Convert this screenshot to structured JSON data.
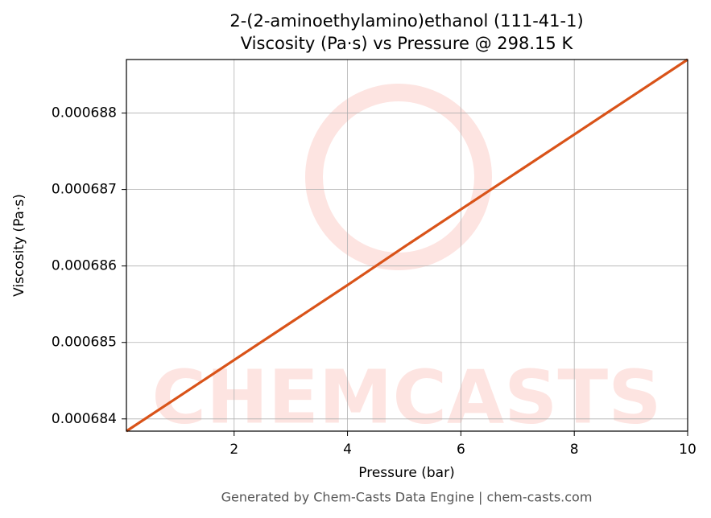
{
  "chart_data": {
    "type": "line",
    "title": [
      "2-(2-aminoethylamino)ethanol (111-41-1)",
      "Viscosity (Pa·s) vs Pressure @ 298.15 K"
    ],
    "x_label": "Pressure (bar)",
    "y_label": "Viscosity (Pa·s)",
    "watermark": "CHEMCASTS",
    "footer": "Generated by Chem-Casts Data Engine | chem-casts.com",
    "x": [
      0.1,
      1,
      2,
      3,
      4,
      5,
      6,
      7,
      8,
      9,
      10
    ],
    "series": [
      {
        "name": "Viscosity",
        "color": "#d95319",
        "values": [
          0.00068384,
          0.00068428,
          0.00068477,
          0.00068526,
          0.00068575,
          0.00068625,
          0.00068674,
          0.00068723,
          0.00068772,
          0.00068821,
          0.0006887
        ]
      }
    ],
    "xlim": [
      0.1,
      10
    ],
    "ylim": [
      0.00068384,
      0.0006887
    ],
    "xticks": [
      2,
      4,
      6,
      8,
      10
    ],
    "yticks": [
      0.000684,
      0.000685,
      0.000686,
      0.000687,
      0.000688
    ],
    "grid": true
  }
}
